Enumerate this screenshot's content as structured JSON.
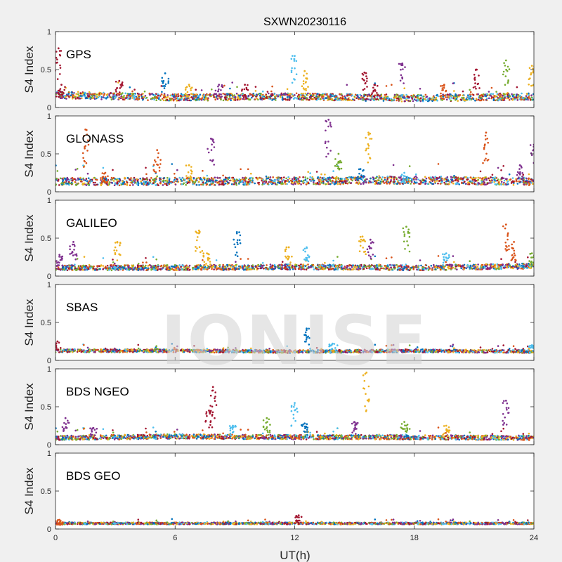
{
  "chart_data": {
    "type": "scatter",
    "title": "SXWN20230116",
    "xlabel": "UT(h)",
    "ylabel": "S4 Index",
    "xlim": [
      0,
      24
    ],
    "ylim": [
      0,
      1
    ],
    "xticks": [
      "0",
      "6",
      "12",
      "18",
      "24"
    ],
    "yticks": [
      "0",
      "0.5",
      "1"
    ],
    "watermark": "IONISE",
    "grid": false,
    "legend": "none",
    "series_colors": [
      "#0072bd",
      "#d95319",
      "#edb120",
      "#7e2f8e",
      "#77ac30",
      "#4dbeee",
      "#a2142f"
    ],
    "panels": [
      {
        "name": "GPS",
        "baseline_by_hour": [
          [
            0,
            0.15
          ],
          [
            6,
            0.12
          ],
          [
            12,
            0.13
          ],
          [
            18,
            0.11
          ],
          [
            24,
            0.13
          ]
        ],
        "spread": 0.09,
        "spikes": [
          [
            0.15,
            0.78
          ],
          [
            0.3,
            0.3
          ],
          [
            3.2,
            0.35
          ],
          [
            5.5,
            0.45
          ],
          [
            6.7,
            0.3
          ],
          [
            8.2,
            0.3
          ],
          [
            9.5,
            0.3
          ],
          [
            12.0,
            0.68
          ],
          [
            12.5,
            0.48
          ],
          [
            15.5,
            0.46
          ],
          [
            16.0,
            0.3
          ],
          [
            17.4,
            0.58
          ],
          [
            19.5,
            0.3
          ],
          [
            21.1,
            0.5
          ],
          [
            22.6,
            0.62
          ],
          [
            23.9,
            0.55
          ]
        ]
      },
      {
        "name": "GLONASS",
        "baseline_by_hour": [
          [
            0,
            0.12
          ],
          [
            6,
            0.12
          ],
          [
            12,
            0.13
          ],
          [
            18,
            0.14
          ],
          [
            24,
            0.12
          ]
        ],
        "spread": 0.1,
        "spikes": [
          [
            1.5,
            0.82
          ],
          [
            2.5,
            0.25
          ],
          [
            5.1,
            0.55
          ],
          [
            6.7,
            0.35
          ],
          [
            7.8,
            0.7
          ],
          [
            13.7,
            0.95
          ],
          [
            14.2,
            0.5
          ],
          [
            15.7,
            0.78
          ],
          [
            15.3,
            0.3
          ],
          [
            17.5,
            0.25
          ],
          [
            21.6,
            0.78
          ],
          [
            23.3,
            0.35
          ],
          [
            24.0,
            0.62
          ]
        ]
      },
      {
        "name": "GALILEO",
        "baseline_by_hour": [
          [
            0,
            0.1
          ],
          [
            6,
            0.1
          ],
          [
            12,
            0.11
          ],
          [
            18,
            0.1
          ],
          [
            24,
            0.12
          ]
        ],
        "spread": 0.07,
        "spikes": [
          [
            0.2,
            0.28
          ],
          [
            0.9,
            0.45
          ],
          [
            3.1,
            0.45
          ],
          [
            7.2,
            0.6
          ],
          [
            7.6,
            0.3
          ],
          [
            9.1,
            0.58
          ],
          [
            11.7,
            0.38
          ],
          [
            12.6,
            0.38
          ],
          [
            15.4,
            0.52
          ],
          [
            15.8,
            0.48
          ],
          [
            17.6,
            0.65
          ],
          [
            19.6,
            0.3
          ],
          [
            22.6,
            0.68
          ],
          [
            23.0,
            0.45
          ],
          [
            23.9,
            0.3
          ]
        ]
      },
      {
        "name": "SBAS",
        "baseline_by_hour": [
          [
            0,
            0.12
          ],
          [
            6,
            0.12
          ],
          [
            12,
            0.11
          ],
          [
            18,
            0.12
          ],
          [
            24,
            0.11
          ]
        ],
        "spread": 0.04,
        "spikes": [
          [
            0.1,
            0.25
          ],
          [
            12.6,
            0.42
          ],
          [
            13.9,
            0.22
          ],
          [
            23.9,
            0.2
          ]
        ]
      },
      {
        "name": "BDS NGEO",
        "baseline_by_hour": [
          [
            0,
            0.08
          ],
          [
            6,
            0.1
          ],
          [
            12,
            0.09
          ],
          [
            18,
            0.09
          ],
          [
            24,
            0.08
          ]
        ],
        "spread": 0.06,
        "spikes": [
          [
            0.5,
            0.35
          ],
          [
            1.9,
            0.22
          ],
          [
            7.9,
            0.76
          ],
          [
            7.7,
            0.45
          ],
          [
            8.9,
            0.25
          ],
          [
            10.6,
            0.35
          ],
          [
            12.0,
            0.55
          ],
          [
            12.5,
            0.28
          ],
          [
            15.6,
            0.95
          ],
          [
            15.0,
            0.3
          ],
          [
            17.5,
            0.3
          ],
          [
            19.6,
            0.25
          ],
          [
            22.6,
            0.58
          ]
        ]
      },
      {
        "name": "BDS GEO",
        "baseline_by_hour": [
          [
            0,
            0.07
          ],
          [
            6,
            0.07
          ],
          [
            12,
            0.07
          ],
          [
            18,
            0.07
          ],
          [
            24,
            0.07
          ]
        ],
        "spread": 0.025,
        "spikes": [
          [
            0.2,
            0.12
          ],
          [
            12.2,
            0.18
          ]
        ]
      }
    ]
  }
}
